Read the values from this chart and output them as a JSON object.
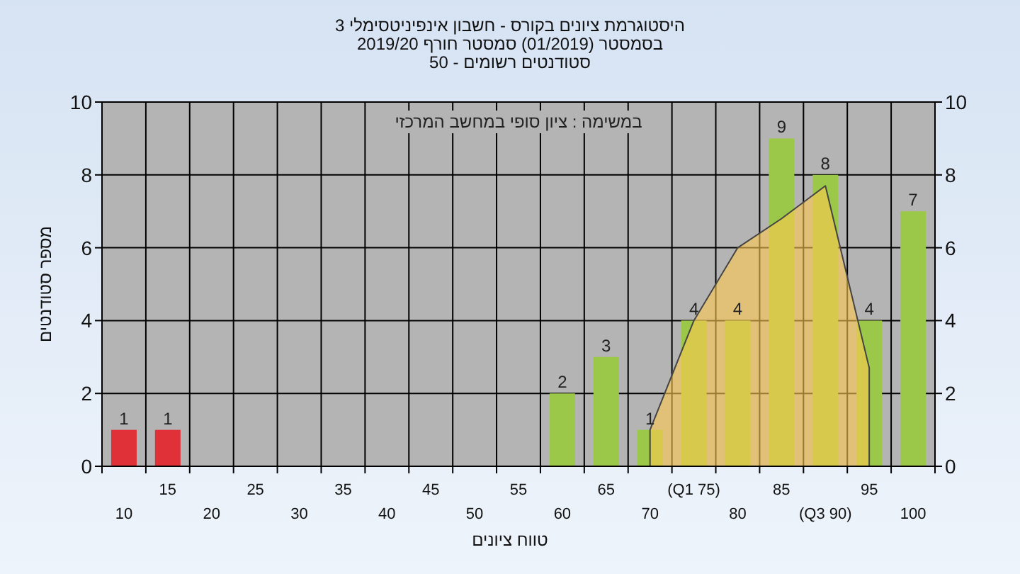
{
  "chart_data": {
    "type": "bar",
    "title": "היסטוגרמת ציונים בקורס - חשבון אינפיניטסימלי 3",
    "subtitle": "בסמסטר  (01/2019)  סמסטר חורף 2019/20\nסטודנטים רשומים - 50",
    "xlabel": "טווח ציונים",
    "ylabel": "מספר סטודנטים",
    "annotations": [
      "במשימה : ציון סופי במחשב המרכזי"
    ],
    "categories": [
      "10",
      "15",
      "20",
      "25",
      "30",
      "35",
      "40",
      "45",
      "50",
      "55",
      "60",
      "65",
      "70",
      "(Q1 75)",
      "80",
      "85",
      "(Q3 90)",
      "95",
      "100"
    ],
    "series": [
      {
        "type": "area",
        "color": "#ffc94f",
        "values": [
          null,
          null,
          null,
          null,
          null,
          null,
          null,
          null,
          null,
          null,
          null,
          null,
          1,
          4,
          6,
          6.8,
          7.7,
          2.7,
          null
        ]
      },
      {
        "colors": [
          "#e03038",
          "#e03038",
          "#9cc84a",
          "#9cc84a",
          "#9cc84a",
          "#9cc84a",
          "#9cc84a",
          "#9cc84a",
          "#9cc84a",
          "#9cc84a",
          "#9cc84a",
          "#9cc84a",
          "#9cc84a",
          "#9cc84a",
          "#9cc84a",
          "#9cc84a",
          "#9cc84a",
          "#9cc84a",
          "#9cc84a"
        ],
        "values": [
          1,
          1,
          0,
          0,
          0,
          0,
          0,
          0,
          0,
          0,
          2,
          3,
          1,
          4,
          4,
          9,
          8,
          4,
          7
        ],
        "value_labels": [
          "1",
          "1",
          null,
          null,
          null,
          null,
          null,
          null,
          null,
          null,
          "2",
          "3",
          "1",
          "4",
          "4",
          "9",
          "8",
          "4",
          "7"
        ]
      }
    ],
    "ylim": [
      0,
      10
    ],
    "yticks": [
      0,
      2,
      4,
      6,
      8,
      10
    ],
    "y2lim": [
      0,
      10
    ],
    "y2ticks": [
      0,
      2,
      4,
      6,
      8,
      10
    ],
    "grid": true
  }
}
